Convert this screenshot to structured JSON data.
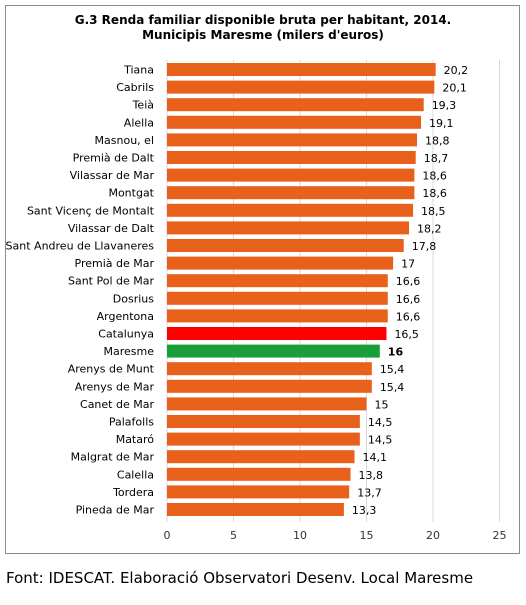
{
  "chart_data": {
    "type": "bar",
    "orientation": "horizontal",
    "title": "G.3 Renda familiar disponible bruta per habitant, 2014.",
    "subtitle": "Municipis Maresme (milers d'euros)",
    "categories": [
      "Tiana",
      "Cabrils",
      "Teià",
      "Alella",
      "Masnou, el",
      "Premià de Dalt",
      "Vilassar de Mar",
      "Montgat",
      "Sant Vicenç de Montalt",
      "Vilassar de Dalt",
      "Sant Andreu de Llavaneres",
      "Premià de Mar",
      "Sant Pol de Mar",
      "Dosrius",
      "Argentona",
      "Catalunya",
      "Maresme",
      "Arenys de Munt",
      "Arenys de Mar",
      "Canet de Mar",
      "Palafolls",
      "Mataró",
      "Malgrat de Mar",
      "Calella",
      "Tordera",
      "Pineda de Mar"
    ],
    "values": [
      20.2,
      20.1,
      19.3,
      19.1,
      18.8,
      18.7,
      18.6,
      18.6,
      18.5,
      18.2,
      17.8,
      17,
      16.6,
      16.6,
      16.6,
      16.5,
      16,
      15.4,
      15.4,
      15,
      14.5,
      14.5,
      14.1,
      13.8,
      13.7,
      13.3
    ],
    "value_labels": [
      "20,2",
      "20,1",
      "19,3",
      "19,1",
      "18,8",
      "18,7",
      "18,6",
      "18,6",
      "18,5",
      "18,2",
      "17,8",
      "17",
      "16,6",
      "16,6",
      "16,6",
      "16,5",
      "16",
      "15,4",
      "15,4",
      "15",
      "14,5",
      "14,5",
      "14,1",
      "13,8",
      "13,7",
      "13,3"
    ],
    "xlim": [
      0,
      25
    ],
    "xticks": [
      0,
      5,
      10,
      15,
      20,
      25
    ],
    "xtick_labels": [
      "0",
      "5",
      "10",
      "15",
      "20",
      "25"
    ],
    "grid": true,
    "colors": {
      "default": "#e8611a",
      "Catalunya": "#ff0000",
      "Maresme": "#1a9e3a"
    },
    "bold_value_labels": [
      "Maresme"
    ]
  },
  "source_note": "Font: IDESCAT. Elaboració Observatori Desenv. Local Maresme"
}
